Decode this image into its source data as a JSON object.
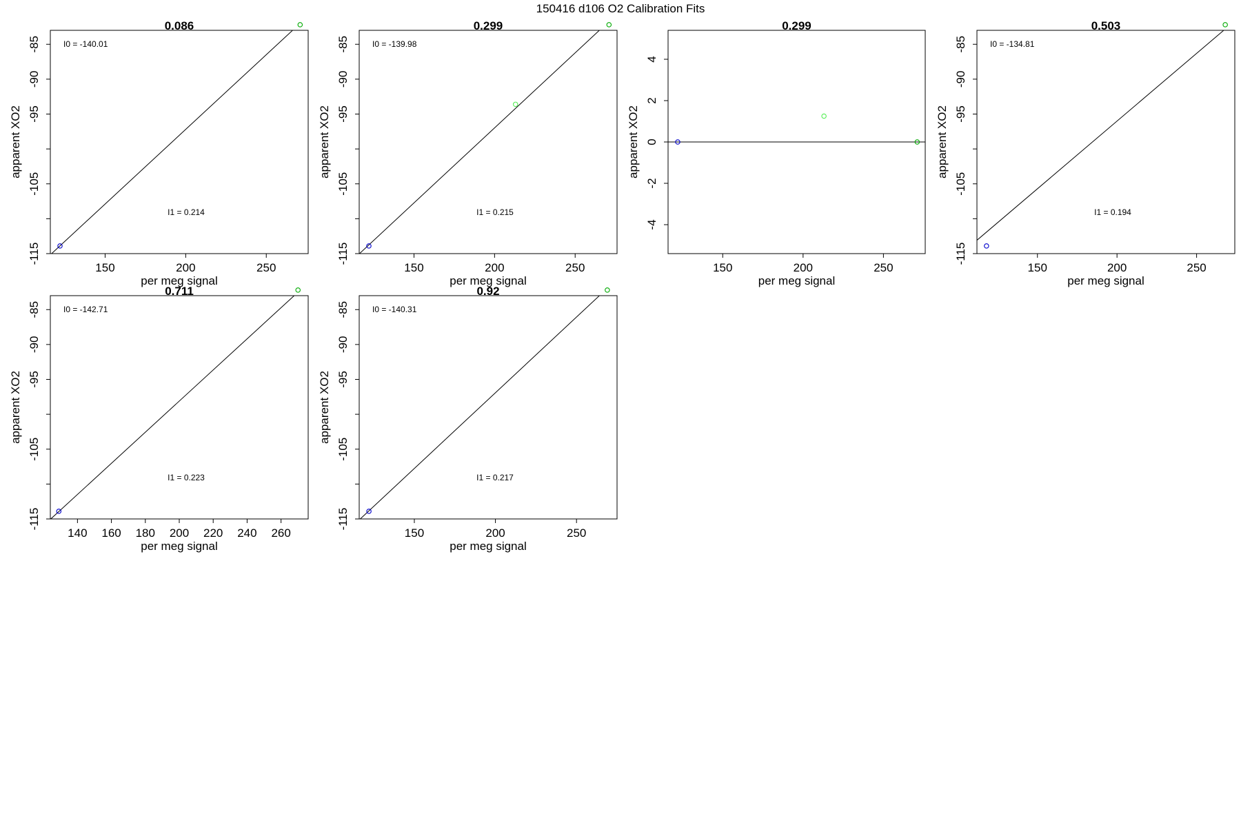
{
  "figure": {
    "title": "150416   d106   O2 Calibration Fits"
  },
  "chart_data": [
    {
      "type": "scatter",
      "title": "0.086",
      "xlabel": "per meg signal",
      "ylabel": "apparent XO2",
      "xlim": [
        116,
        276
      ],
      "ylim": [
        -115,
        -83
      ],
      "xticks": [
        150,
        200,
        250
      ],
      "yticks": [
        -115,
        -105,
        -95,
        -90,
        -85
      ],
      "ytick_marks": [
        -115,
        -110,
        -105,
        -100,
        -95,
        -90,
        -85
      ],
      "fit_line": {
        "x1": 116,
        "y1": -115.17,
        "x2": 276,
        "y2": -80.93
      },
      "points": [
        {
          "x": 122,
          "y": -113.9,
          "color": "#0000cc"
        },
        {
          "x": 271,
          "y": -82.2,
          "color": "#00aa00"
        }
      ],
      "annotations": {
        "i0": "I0 =  -140.01",
        "i1": "I1 =  0.214"
      }
    },
    {
      "type": "scatter",
      "title": "0.299",
      "xlabel": "per meg signal",
      "ylabel": "apparent XO2",
      "xlim": [
        116,
        276
      ],
      "ylim": [
        -115,
        -83
      ],
      "xticks": [
        150,
        200,
        250
      ],
      "yticks": [
        -115,
        -105,
        -95,
        -90,
        -85
      ],
      "ytick_marks": [
        -115,
        -110,
        -105,
        -100,
        -95,
        -90,
        -85
      ],
      "fit_line": {
        "x1": 116,
        "y1": -115.04,
        "x2": 276,
        "y2": -80.64
      },
      "points": [
        {
          "x": 122,
          "y": -113.9,
          "color": "#0000cc"
        },
        {
          "x": 213,
          "y": -93.6,
          "color": "#55ee55"
        },
        {
          "x": 271,
          "y": -82.2,
          "color": "#00aa00"
        }
      ],
      "annotations": {
        "i0": "I0 =  -139.98",
        "i1": "I1 =  0.215"
      }
    },
    {
      "type": "scatter",
      "title": "0.299",
      "xlabel": "per meg signal",
      "ylabel": "apparent XO2",
      "xlim": [
        116,
        276
      ],
      "ylim": [
        -5.4,
        5.4
      ],
      "xticks": [
        150,
        200,
        250
      ],
      "yticks": [
        -4,
        -2,
        0,
        2,
        4
      ],
      "ytick_marks": [
        -4,
        -2,
        0,
        2,
        4
      ],
      "fit_line": {
        "x1": 116,
        "y1": 0,
        "x2": 276,
        "y2": 0
      },
      "points": [
        {
          "x": 122,
          "y": 0,
          "color": "#0000cc"
        },
        {
          "x": 213,
          "y": 1.25,
          "color": "#55ee55"
        },
        {
          "x": 271,
          "y": 0,
          "color": "#00aa00"
        }
      ],
      "annotations": {}
    },
    {
      "type": "scatter",
      "title": "0.503",
      "xlabel": "per meg signal",
      "ylabel": "apparent XO2",
      "xlim": [
        112,
        274
      ],
      "ylim": [
        -115,
        -83
      ],
      "xticks": [
        150,
        200,
        250
      ],
      "yticks": [
        -115,
        -105,
        -95,
        -90,
        -85
      ],
      "ytick_marks": [
        -115,
        -110,
        -105,
        -100,
        -95,
        -90,
        -85
      ],
      "fit_line": {
        "x1": 112,
        "y1": -113.08,
        "x2": 274,
        "y2": -81.65
      },
      "points": [
        {
          "x": 118,
          "y": -113.9,
          "color": "#0000cc"
        },
        {
          "x": 268,
          "y": -82.2,
          "color": "#00aa00"
        }
      ],
      "annotations": {
        "i0": "I0 =  -134.81",
        "i1": "I1 =  0.194"
      }
    },
    {
      "type": "scatter",
      "title": "0.711",
      "xlabel": "per meg signal",
      "ylabel": "apparent XO2",
      "xlim": [
        124,
        276
      ],
      "ylim": [
        -115,
        -83
      ],
      "xticks": [
        140,
        160,
        180,
        200,
        220,
        240,
        260
      ],
      "yticks": [
        -115,
        -105,
        -95,
        -90,
        -85
      ],
      "ytick_marks": [
        -115,
        -110,
        -105,
        -100,
        -95,
        -90,
        -85
      ],
      "fit_line": {
        "x1": 124,
        "y1": -115.06,
        "x2": 276,
        "y2": -81.16
      },
      "points": [
        {
          "x": 129,
          "y": -113.9,
          "color": "#0000cc"
        },
        {
          "x": 270,
          "y": -82.2,
          "color": "#00aa00"
        }
      ],
      "annotations": {
        "i0": "I0 =  -142.71",
        "i1": "I1 =  0.223"
      }
    },
    {
      "type": "scatter",
      "title": "0.92",
      "xlabel": "per meg signal",
      "ylabel": "apparent XO2",
      "xlim": [
        116,
        275
      ],
      "ylim": [
        -115,
        -83
      ],
      "xticks": [
        150,
        200,
        250
      ],
      "yticks": [
        -115,
        -105,
        -95,
        -90,
        -85
      ],
      "ytick_marks": [
        -115,
        -110,
        -105,
        -100,
        -95,
        -90,
        -85
      ],
      "fit_line": {
        "x1": 116,
        "y1": -115.14,
        "x2": 275,
        "y2": -80.64
      },
      "points": [
        {
          "x": 122,
          "y": -113.9,
          "color": "#0000cc"
        },
        {
          "x": 269,
          "y": -82.2,
          "color": "#00aa00"
        }
      ],
      "annotations": {
        "i0": "I0 =  -140.31",
        "i1": "I1 =  0.217"
      }
    }
  ]
}
